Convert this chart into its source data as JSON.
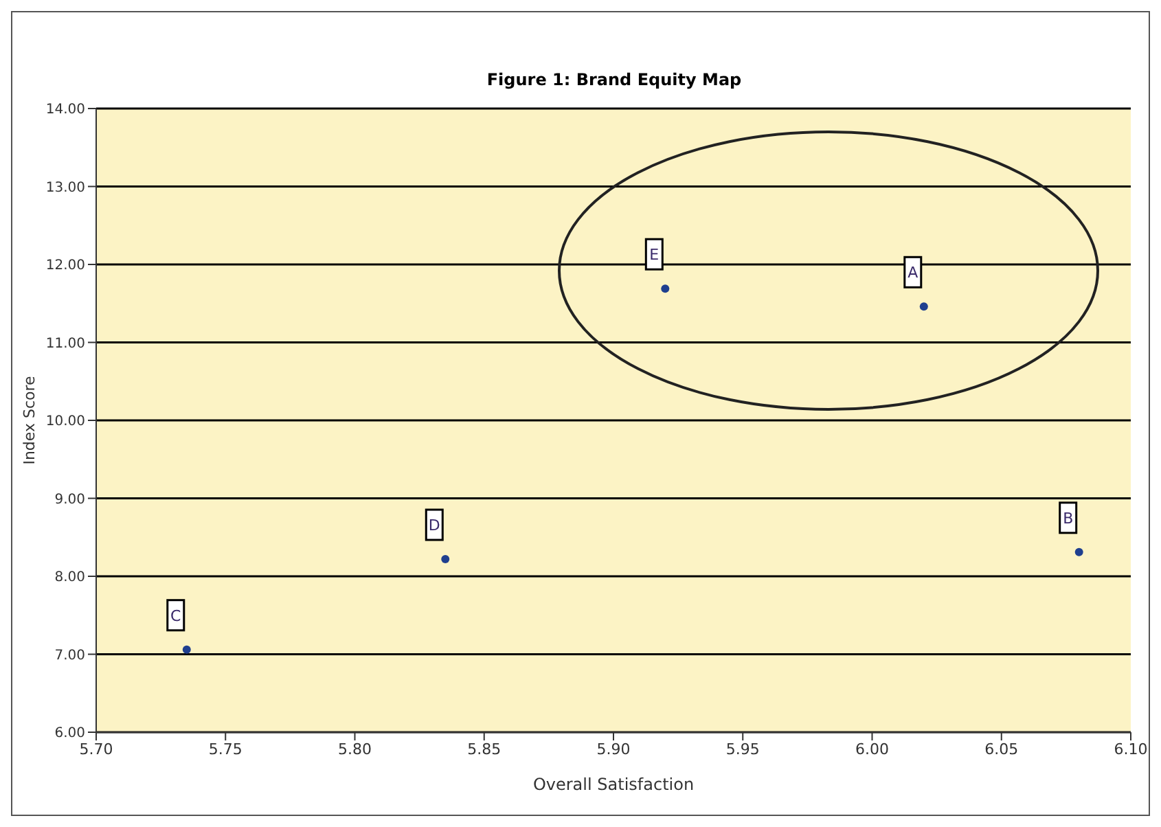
{
  "chart_data": {
    "type": "scatter",
    "title": "Figure 1: Brand Equity Map",
    "xlabel": "Overall Satisfaction",
    "ylabel": "Index Score",
    "x": [
      5.735,
      5.835,
      5.92,
      6.02,
      6.08
    ],
    "values": [
      7.06,
      8.22,
      11.69,
      11.46,
      8.31
    ],
    "color": "#1f3f8f",
    "marker": "circle",
    "grid": "y",
    "xlim": [
      5.7,
      6.1
    ],
    "xticks": [
      {
        "value": 5.7,
        "label": "5.70"
      },
      {
        "value": 5.75,
        "label": "5.75"
      },
      {
        "value": 5.8,
        "label": "5.80"
      },
      {
        "value": 5.85,
        "label": "5.85"
      },
      {
        "value": 5.9,
        "label": "5.90"
      },
      {
        "value": 5.95,
        "label": "5.95"
      },
      {
        "value": 6.0,
        "label": "6.00"
      },
      {
        "value": 6.05,
        "label": "6.05"
      },
      {
        "value": 6.1,
        "label": "6.10"
      }
    ],
    "ylim": [
      6,
      14
    ],
    "yticks": [
      {
        "value": 6,
        "label": "6.00"
      },
      {
        "value": 7,
        "label": "7.00"
      },
      {
        "value": 8,
        "label": "8.00"
      },
      {
        "value": 9,
        "label": "9.00"
      },
      {
        "value": 10,
        "label": "10.00"
      },
      {
        "value": 11,
        "label": "11.00"
      },
      {
        "value": 12,
        "label": "12.00"
      },
      {
        "value": 13,
        "label": "13.00"
      },
      {
        "value": 14,
        "label": "14.00"
      }
    ],
    "annotations": [
      {
        "text": "C",
        "x": 5.735,
        "y": 7.06
      },
      {
        "text": "D",
        "x": 5.835,
        "y": 8.22
      },
      {
        "text": "E",
        "x": 5.92,
        "y": 11.69
      },
      {
        "text": "A",
        "x": 6.02,
        "y": 11.46
      },
      {
        "text": "B",
        "x": 6.08,
        "y": 8.31
      }
    ]
  }
}
